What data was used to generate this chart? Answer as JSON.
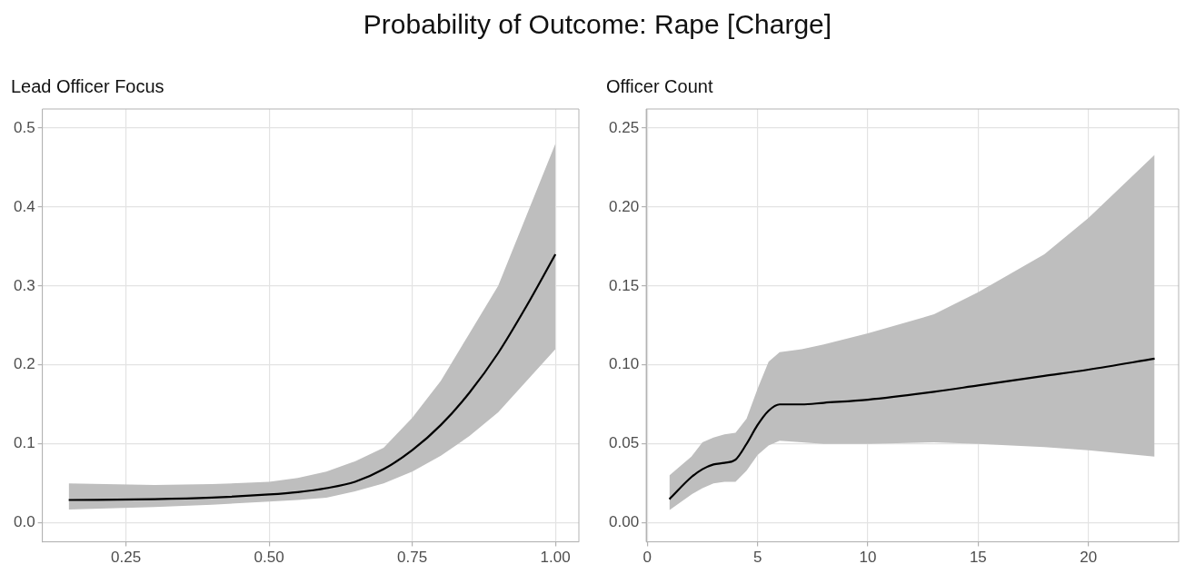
{
  "chart_data": [
    {
      "type": "line",
      "title": "Probability of Outcome: Rape [Charge]",
      "subtitle": "Lead Officer Focus",
      "grid": true,
      "legend": false,
      "marker": "none",
      "line_style": "solid",
      "xlim": [
        0.104,
        1.041
      ],
      "xticks": [
        0.25,
        {
          "value": 0.5,
          "label": "0.50"
        },
        0.75,
        {
          "value": 1,
          "label": "1.00"
        }
      ],
      "ylim": [
        -0.024,
        0.524
      ],
      "yticks": [
        {
          "value": 0,
          "label": "0.0"
        },
        0.1,
        0.2,
        0.3,
        0.4,
        0.5
      ],
      "series": [
        {
          "color": "#000000",
          "x": [
            0.15,
            0.3,
            0.4,
            0.5,
            0.55,
            0.6,
            0.65,
            0.7,
            0.75,
            0.8,
            0.85,
            0.9,
            0.95,
            1.0
          ],
          "values": [
            0.029,
            0.03,
            0.032,
            0.036,
            0.039,
            0.044,
            0.052,
            0.068,
            0.092,
            0.124,
            0.165,
            0.215,
            0.275,
            0.34
          ],
          "lower": [
            0.017,
            0.02,
            0.023,
            0.027,
            0.029,
            0.032,
            0.04,
            0.05,
            0.065,
            0.085,
            0.11,
            0.14,
            0.18,
            0.22
          ],
          "upper": [
            0.05,
            0.048,
            0.049,
            0.052,
            0.057,
            0.065,
            0.078,
            0.095,
            0.133,
            0.18,
            0.24,
            0.3,
            0.39,
            0.48
          ]
        }
      ]
    },
    {
      "type": "line",
      "subtitle": "Officer Count",
      "grid": true,
      "legend": false,
      "marker": "none",
      "line_style": "solid",
      "xlim": [
        -0.05,
        24.09
      ],
      "xticks": [
        0,
        5,
        10,
        15,
        20
      ],
      "ylim": [
        -0.012,
        0.262
      ],
      "yticks": [
        {
          "value": 0,
          "label": "0.00"
        },
        0.05,
        {
          "value": 0.1,
          "label": "0.10"
        },
        0.15,
        {
          "value": 0.2,
          "label": "0.20"
        },
        0.25
      ],
      "series": [
        {
          "color": "#000000",
          "x": [
            1,
            2,
            2.5,
            3,
            3.5,
            4,
            4.5,
            5,
            5.5,
            6,
            7,
            8,
            10,
            13,
            15,
            18,
            20,
            23
          ],
          "values": [
            0.015,
            0.029,
            0.034,
            0.037,
            0.038,
            0.04,
            0.05,
            0.062,
            0.071,
            0.075,
            0.075,
            0.076,
            0.078,
            0.083,
            0.087,
            0.093,
            0.097,
            0.104
          ],
          "lower": [
            0.008,
            0.018,
            0.022,
            0.025,
            0.026,
            0.026,
            0.033,
            0.043,
            0.049,
            0.052,
            0.051,
            0.05,
            0.05,
            0.051,
            0.05,
            0.048,
            0.046,
            0.042
          ],
          "upper": [
            0.03,
            0.042,
            0.051,
            0.054,
            0.056,
            0.057,
            0.066,
            0.085,
            0.102,
            0.108,
            0.11,
            0.113,
            0.12,
            0.132,
            0.146,
            0.17,
            0.193,
            0.233
          ]
        }
      ]
    }
  ]
}
